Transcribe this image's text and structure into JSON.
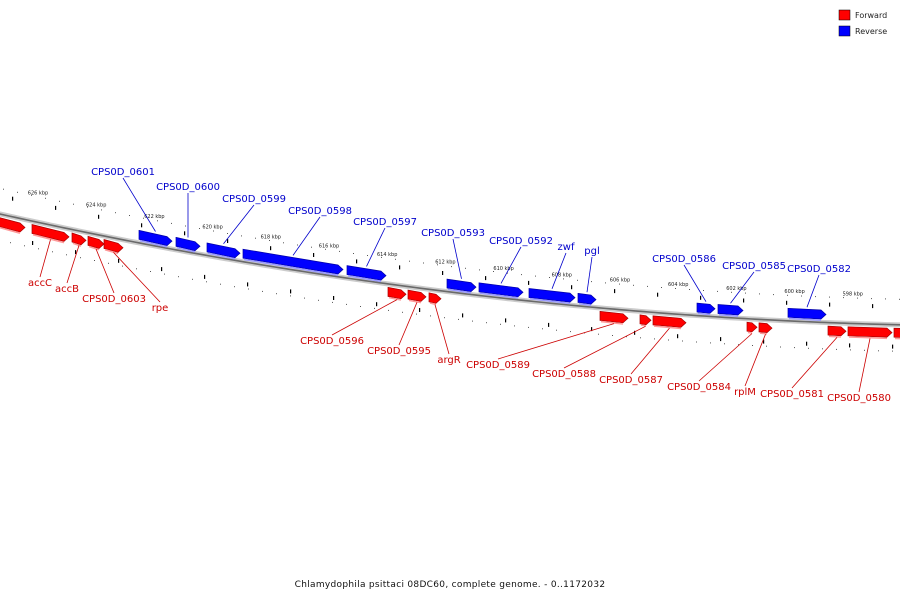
{
  "caption": "Chlamydophila psittaci 08DC60, complete genome. - 0..1172032",
  "legend": [
    {
      "label": "Forward",
      "color": "#ff0000"
    },
    {
      "label": "Reverse",
      "color": "#0000ff"
    }
  ],
  "label_colors": {
    "forward": "#cc0000",
    "reverse": "#0000cc"
  },
  "ticks": [
    {
      "kbp": 626,
      "label": "626 kbp"
    },
    {
      "kbp": 624,
      "label": "624 kbp"
    },
    {
      "kbp": 622,
      "label": "622 kbp"
    },
    {
      "kbp": 620,
      "label": "620 kbp"
    },
    {
      "kbp": 618,
      "label": "618 kbp"
    },
    {
      "kbp": 616,
      "label": "616 kbp"
    },
    {
      "kbp": 614,
      "label": "614 kbp"
    },
    {
      "kbp": 612,
      "label": "612 kbp"
    },
    {
      "kbp": 610,
      "label": "610 kbp"
    },
    {
      "kbp": 608,
      "label": "608 kbp"
    },
    {
      "kbp": 606,
      "label": "606 kbp"
    },
    {
      "kbp": 604,
      "label": "604 kbp"
    },
    {
      "kbp": 602,
      "label": "602 kbp"
    },
    {
      "kbp": 600,
      "label": "600 kbp"
    },
    {
      "kbp": 598,
      "label": "598 kbp"
    }
  ],
  "genes": [
    {
      "name": "",
      "strand": "forward"
    },
    {
      "name": "accC",
      "strand": "forward"
    },
    {
      "name": "accB",
      "strand": "forward"
    },
    {
      "name": "CPS0D_0603",
      "strand": "forward"
    },
    {
      "name": "rpe",
      "strand": "forward"
    },
    {
      "name": "CPS0D_0601",
      "strand": "reverse"
    },
    {
      "name": "CPS0D_0600",
      "strand": "reverse"
    },
    {
      "name": "CPS0D_0599",
      "strand": "reverse"
    },
    {
      "name": "CPS0D_0598",
      "strand": "reverse"
    },
    {
      "name": "CPS0D_0597",
      "strand": "reverse"
    },
    {
      "name": "CPS0D_0596",
      "strand": "forward"
    },
    {
      "name": "CPS0D_0595",
      "strand": "forward"
    },
    {
      "name": "argR",
      "strand": "forward"
    },
    {
      "name": "CPS0D_0593",
      "strand": "reverse"
    },
    {
      "name": "CPS0D_0592",
      "strand": "reverse"
    },
    {
      "name": "zwf",
      "strand": "reverse"
    },
    {
      "name": "pgl",
      "strand": "reverse"
    },
    {
      "name": "CPS0D_0589",
      "strand": "forward"
    },
    {
      "name": "CPS0D_0588",
      "strand": "forward"
    },
    {
      "name": "CPS0D_0587",
      "strand": "forward"
    },
    {
      "name": "CPS0D_0586",
      "strand": "reverse"
    },
    {
      "name": "CPS0D_0585",
      "strand": "reverse"
    },
    {
      "name": "CPS0D_0584",
      "strand": "forward"
    },
    {
      "name": "rplM",
      "strand": "forward"
    },
    {
      "name": "CPS0D_0582",
      "strand": "reverse"
    },
    {
      "name": "CPS0D_0581",
      "strand": "forward"
    },
    {
      "name": "CPS0D_0580",
      "strand": "forward"
    },
    {
      "name": "",
      "strand": "forward"
    }
  ]
}
